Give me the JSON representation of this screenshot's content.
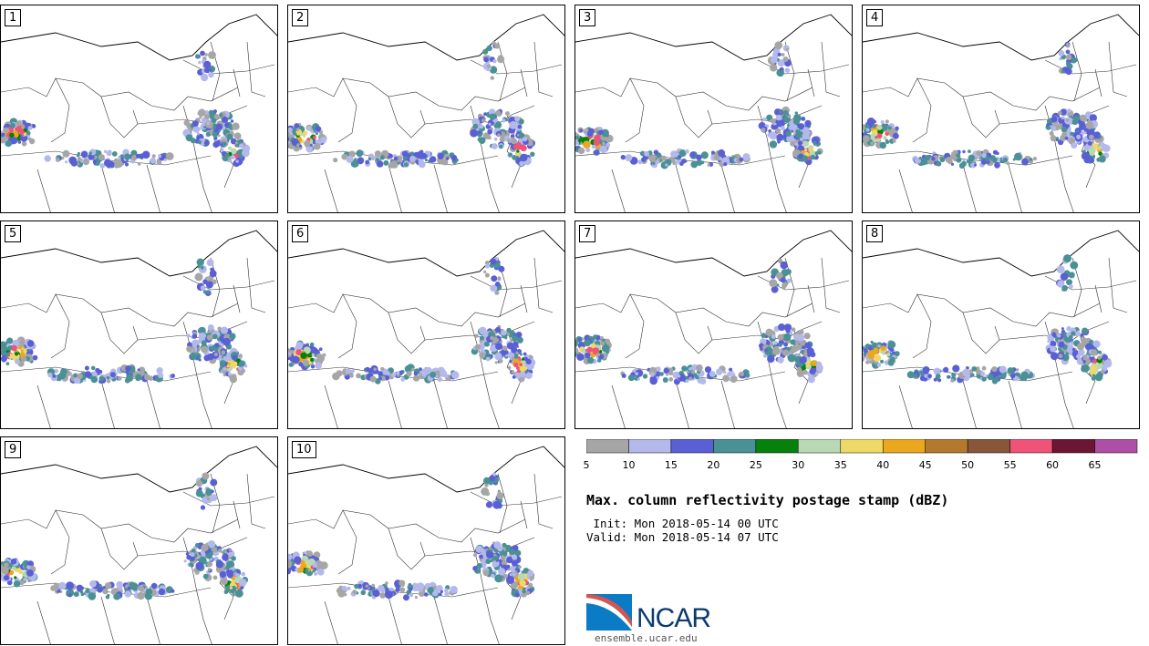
{
  "panels": [
    {
      "label": "1"
    },
    {
      "label": "2"
    },
    {
      "label": "3"
    },
    {
      "label": "4"
    },
    {
      "label": "5"
    },
    {
      "label": "6"
    },
    {
      "label": "7"
    },
    {
      "label": "8"
    },
    {
      "label": "9"
    },
    {
      "label": "10"
    }
  ],
  "colorbar": {
    "bins": [
      {
        "color": "#a6a6a6"
      },
      {
        "color": "#b4b9ec"
      },
      {
        "color": "#5a5fd6"
      },
      {
        "color": "#4a9196"
      },
      {
        "color": "#06810b"
      },
      {
        "color": "#b9d9b4"
      },
      {
        "color": "#eed967"
      },
      {
        "color": "#eba71e"
      },
      {
        "color": "#b4792e"
      },
      {
        "color": "#8a5639"
      },
      {
        "color": "#ef5478"
      },
      {
        "color": "#6b1632"
      },
      {
        "color": "#ad4fa7"
      }
    ],
    "ticks": [
      "5",
      "10",
      "15",
      "20",
      "25",
      "30",
      "35",
      "40",
      "45",
      "50",
      "55",
      "60",
      "65"
    ]
  },
  "title": "Max. column reflectivity postage stamp (dBZ)",
  "init": " Init: Mon 2018-05-14 00 UTC",
  "valid": "Valid: Mon 2018-05-14 07 UTC",
  "logo": {
    "text": "NCAR",
    "color": "#0c3a6e",
    "accent": "#0a7bc4"
  },
  "url": "ensemble.ucar.edu"
}
